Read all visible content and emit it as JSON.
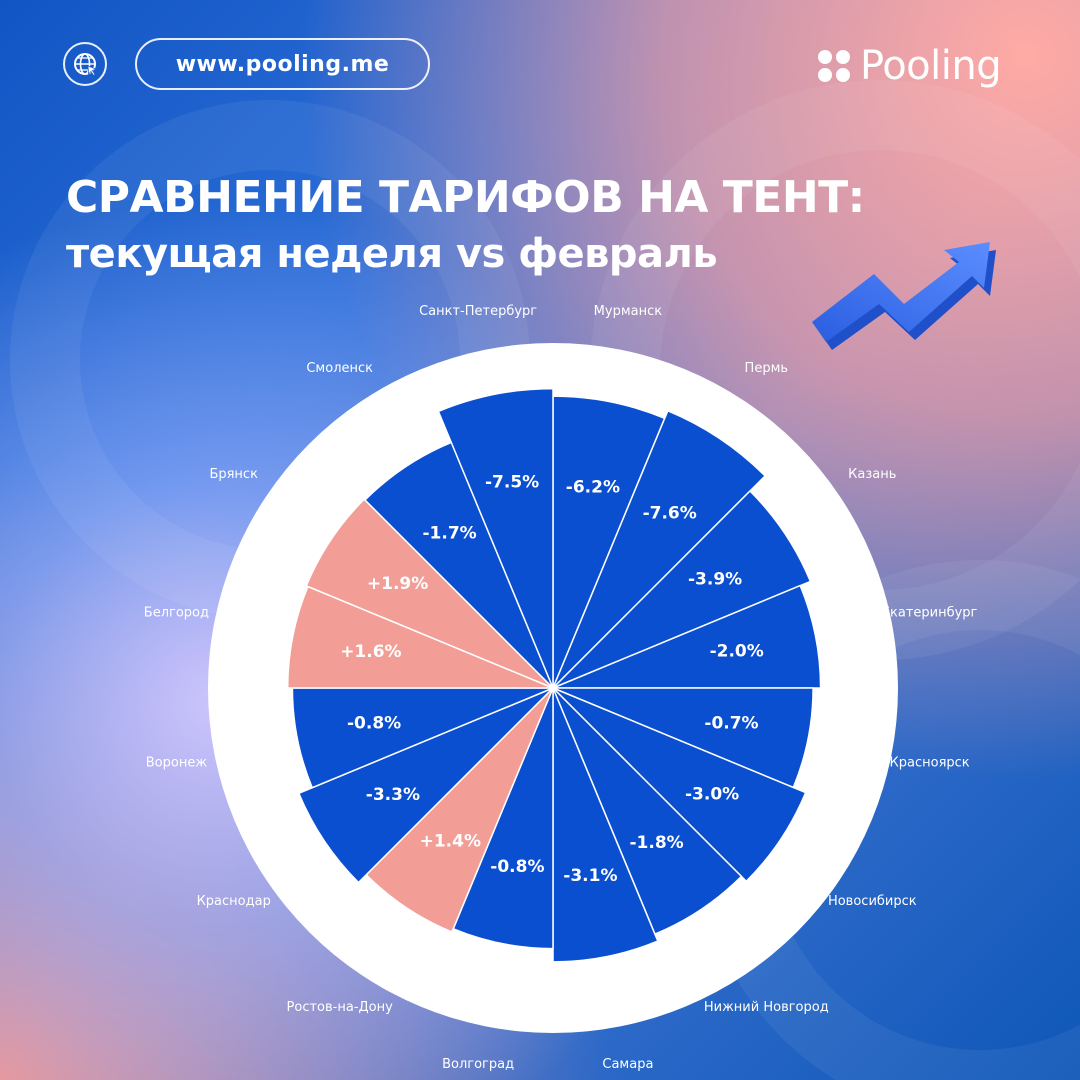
{
  "header": {
    "url": "www.pooling.me",
    "brand_name": "Pooling",
    "globe_icon": "globe-cursor-icon",
    "brand_icon": "four-dots-logo-icon"
  },
  "title": {
    "line1": "СРАВНЕНИЕ ТАРИФОВ НА ТЕНТ:",
    "line2": "текущая неделя vs февраль"
  },
  "decor": {
    "arrow_icon": "trend-up-arrow-icon"
  },
  "colors": {
    "negative": "#0b4fd1",
    "positive": "#f29e97",
    "ring": "#ffffff",
    "label_text": "#ffffff"
  },
  "chart_data": {
    "type": "pie",
    "unit": "%",
    "start": "12 o'clock, clockwise",
    "categories": [
      "Мурманск",
      "Пермь",
      "Казань",
      "Екатеринбург",
      "Красноярск",
      "Новосибирск",
      "Нижний Новгород",
      "Самара",
      "Волгоград",
      "Ростов-на-Дону",
      "Краснодар",
      "Воронеж",
      "Белгород",
      "Брянск",
      "Смоленск",
      "Санкт-Петербург"
    ],
    "values": [
      -6.2,
      -7.6,
      -3.9,
      -2.0,
      -0.7,
      -3.0,
      -1.8,
      -3.1,
      -0.8,
      1.4,
      -3.3,
      -0.8,
      1.6,
      1.9,
      -1.7,
      -7.5
    ],
    "value_labels": [
      "-6.2%",
      "-7.6%",
      "-3.9%",
      "-2.0%",
      "-0.7%",
      "-3.0%",
      "-1.8%",
      "-3.1%",
      "-0.8%",
      "+1.4%",
      "-3.3%",
      "-0.8%",
      "+1.6%",
      "+1.9%",
      "-1.7%",
      "-7.5%"
    ],
    "title": "",
    "legend": "none"
  }
}
